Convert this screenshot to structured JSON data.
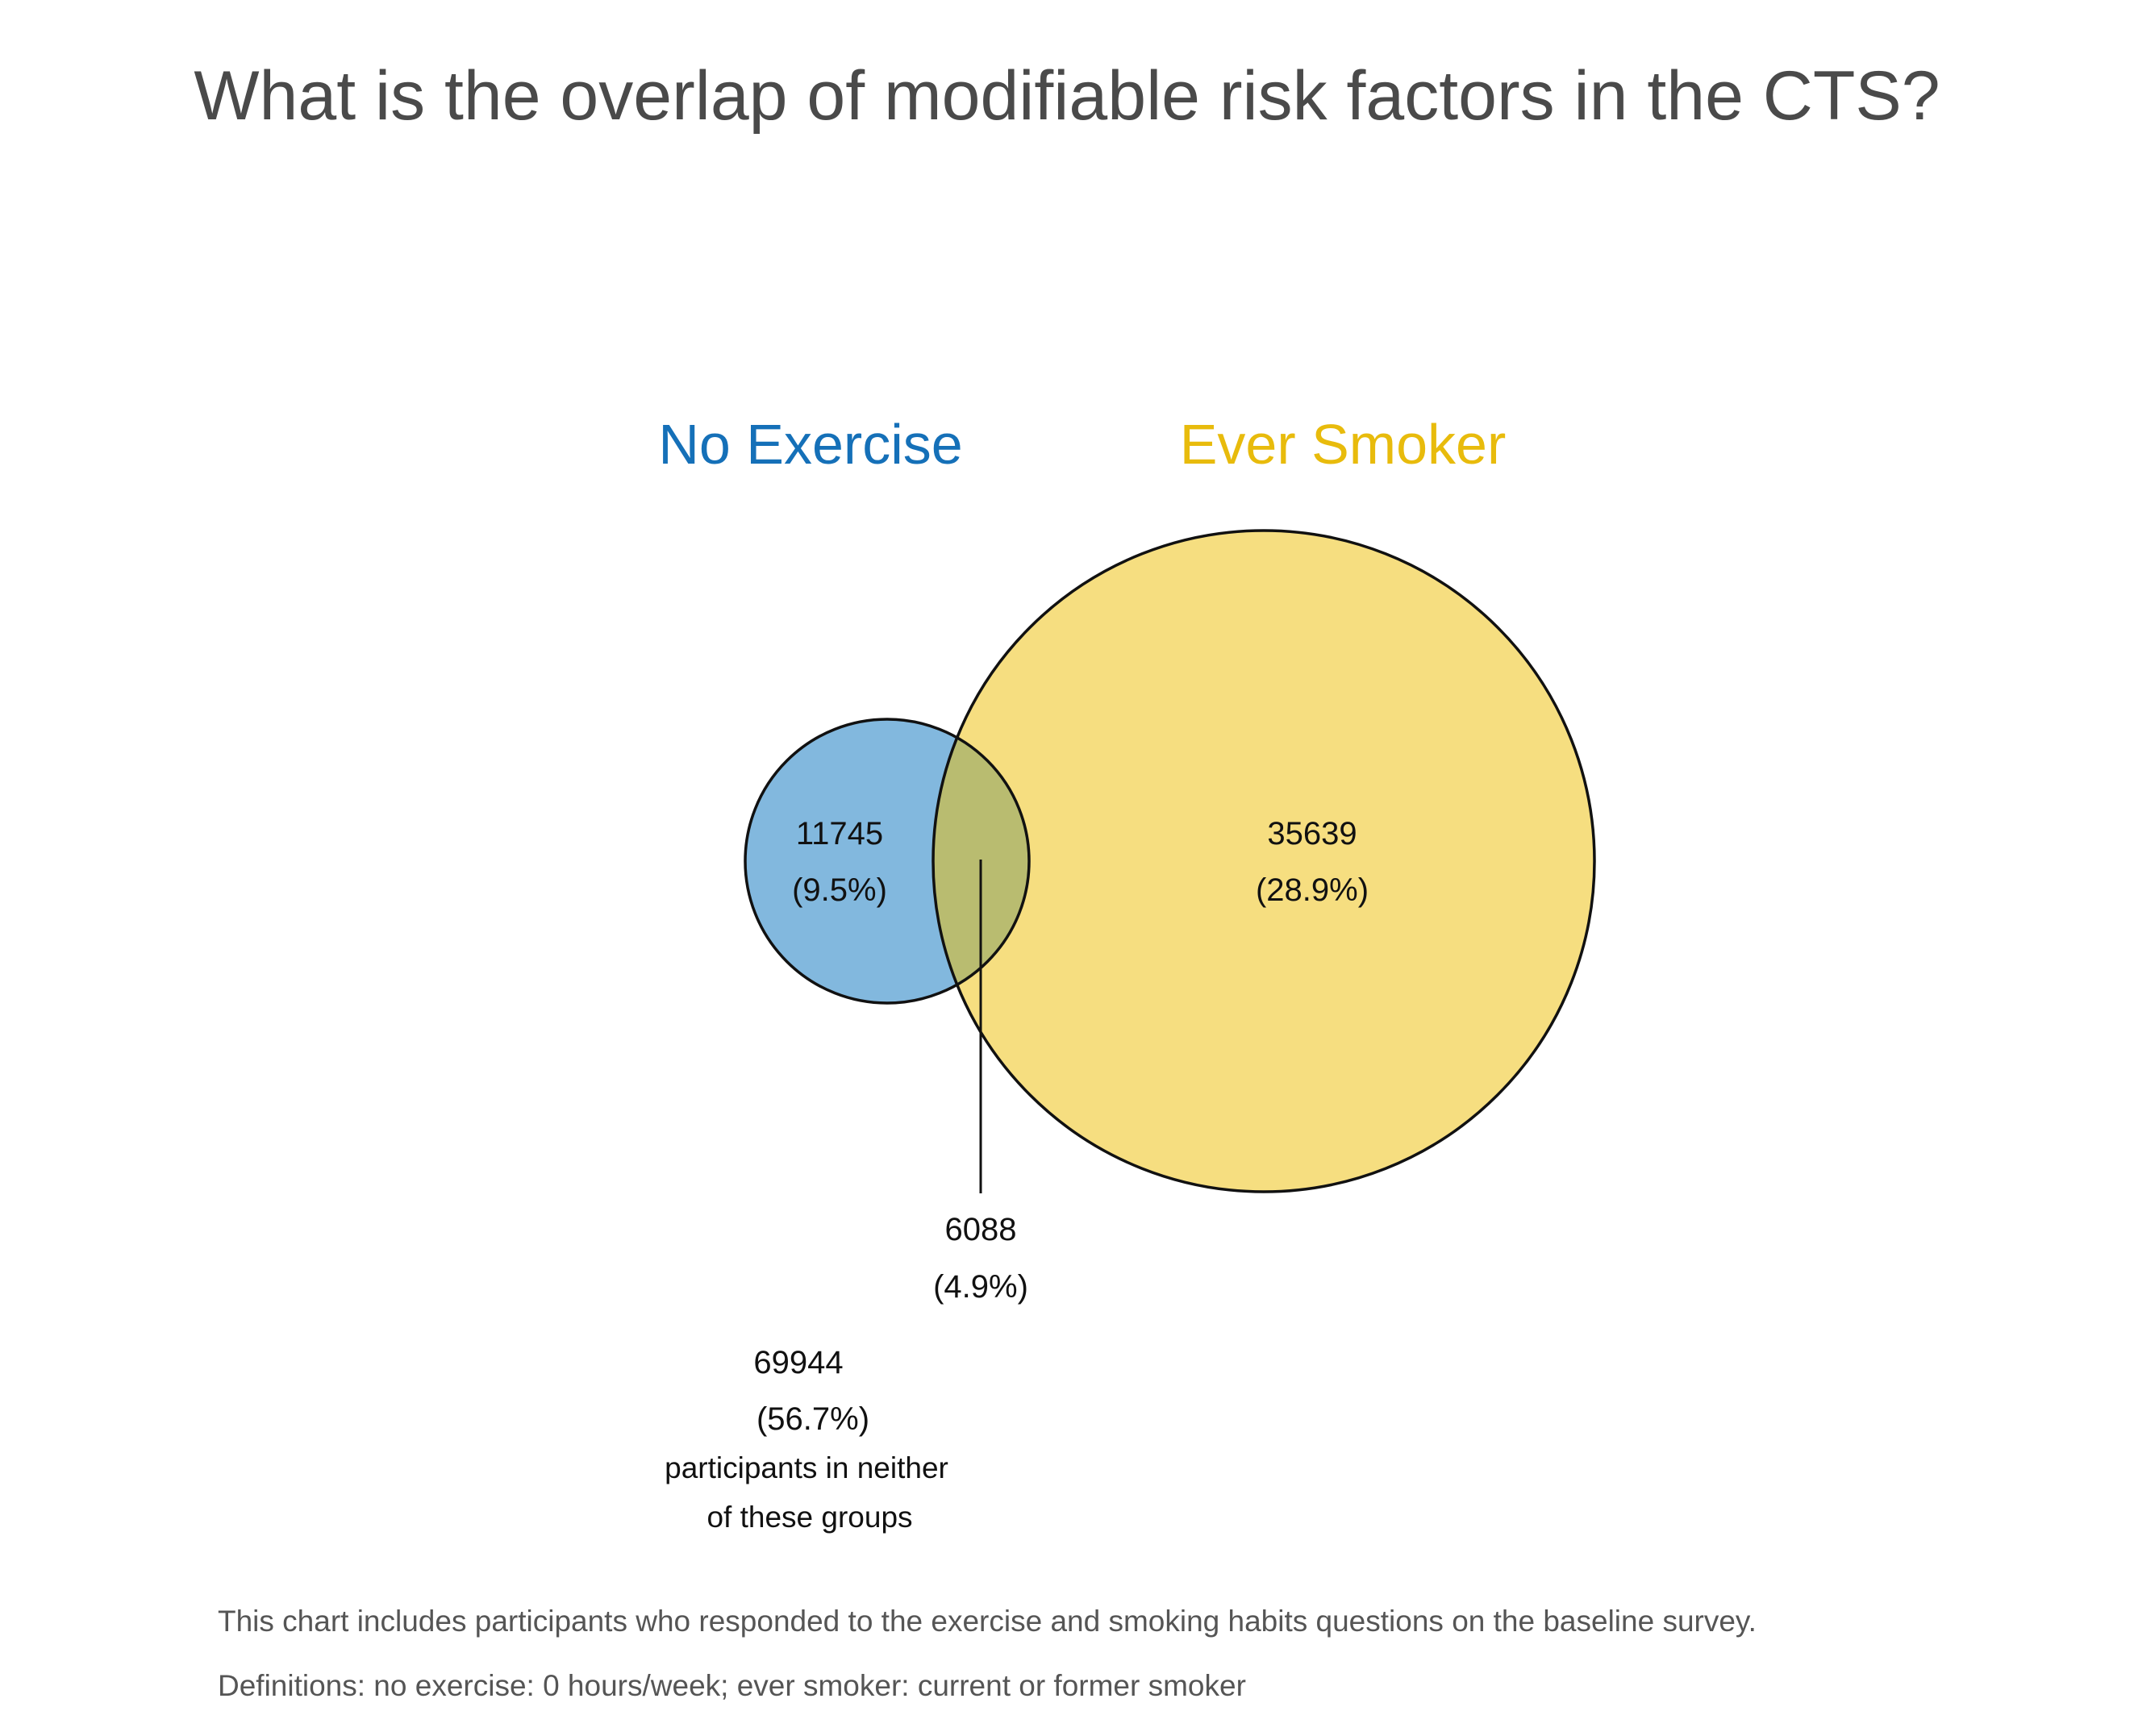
{
  "title": "What is the overlap of modifiable risk factors in the CTS?",
  "colors": {
    "no_exercise_label": "#1570b8",
    "no_exercise_fill": "#82b8de",
    "ever_smoker_label": "#e8bb0c",
    "ever_smoker_fill": "#f6de80",
    "overlap_fill": "#b9bc70",
    "stroke": "#111111"
  },
  "chart_data": {
    "type": "venn",
    "sets": [
      {
        "name": "No Exercise",
        "only_count": "11745",
        "only_percent": "(9.5%)"
      },
      {
        "name": "Ever Smoker",
        "only_count": "35639",
        "only_percent": "(28.9%)"
      }
    ],
    "intersection": {
      "count": "6088",
      "percent": "(4.9%)"
    },
    "neither": {
      "count": "69944",
      "percent": "(56.7%)",
      "note_line1": "participants in neither",
      "note_line2": "of these groups"
    }
  },
  "footer": {
    "line1": "This chart includes participants who responded to the exercise and smoking habits questions on the baseline survey.",
    "line2": "Definitions: no exercise: 0 hours/week; ever smoker: current or former smoker"
  }
}
